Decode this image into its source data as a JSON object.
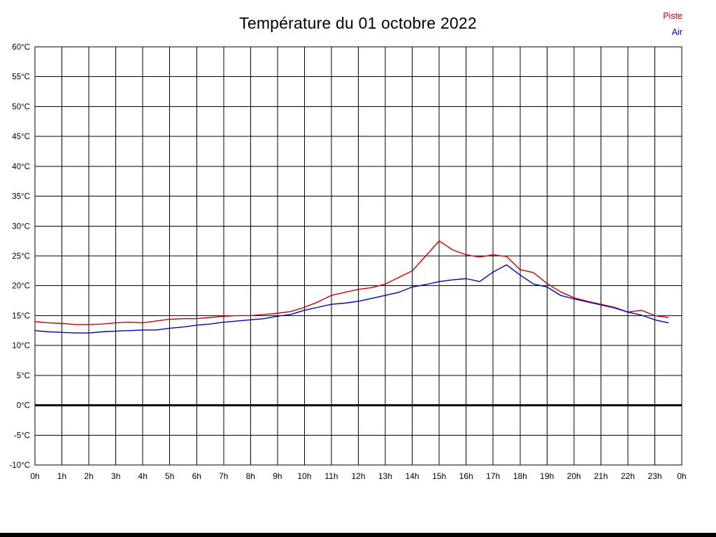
{
  "title": "Température du 01 octobre 2022",
  "legend": {
    "piste": "Piste",
    "air": "Air"
  },
  "colors": {
    "piste": "#cc0000",
    "air": "#0000bb",
    "grid": "#000000",
    "axis_text": "#000000",
    "zero_line": "#000000",
    "background": "#ffffff"
  },
  "chart_data": {
    "type": "line",
    "title": "Température du 01 octobre 2022",
    "xlabel": "",
    "ylabel": "",
    "xlim": [
      0,
      24
    ],
    "ylim": [
      -10,
      60
    ],
    "y_tick_step": 5,
    "x_tick_step_hours": 1,
    "grid": true,
    "zero_line": true,
    "legend_position": "top-right",
    "x_ticks": [
      "0h",
      "1h",
      "2h",
      "3h",
      "4h",
      "5h",
      "6h",
      "7h",
      "8h",
      "9h",
      "10h",
      "11h",
      "12h",
      "13h",
      "14h",
      "15h",
      "16h",
      "17h",
      "18h",
      "19h",
      "20h",
      "21h",
      "22h",
      "23h",
      "0h"
    ],
    "y_ticks": [
      "60°C",
      "55°C",
      "50°C",
      "45°C",
      "40°C",
      "35°C",
      "30°C",
      "25°C",
      "20°C",
      "15°C",
      "10°C",
      "5°C",
      "0°C",
      "-5°C",
      "-10°C"
    ],
    "x_step_hours": 0.5,
    "series": [
      {
        "name": "Piste",
        "color": "#cc0000",
        "values": [
          14.0,
          13.8,
          13.7,
          13.5,
          13.5,
          13.6,
          13.8,
          13.9,
          13.8,
          14.1,
          14.4,
          14.5,
          14.5,
          14.7,
          14.9,
          15.0,
          15.0,
          15.2,
          15.4,
          15.7,
          16.4,
          17.3,
          18.4,
          18.9,
          19.4,
          19.7,
          20.3,
          21.4,
          22.5,
          25.0,
          27.5,
          26.0,
          25.2,
          24.8,
          25.2,
          24.9,
          22.7,
          22.2,
          20.4,
          19.0,
          18.0,
          17.4,
          16.9,
          16.4,
          15.6,
          15.9,
          15.0,
          14.7
        ]
      },
      {
        "name": "Air",
        "color": "#0000bb",
        "values": [
          12.5,
          12.3,
          12.2,
          12.1,
          12.1,
          12.3,
          12.4,
          12.5,
          12.6,
          12.6,
          12.9,
          13.1,
          13.4,
          13.6,
          13.9,
          14.1,
          14.3,
          14.5,
          14.9,
          15.2,
          15.9,
          16.4,
          16.9,
          17.1,
          17.4,
          17.9,
          18.4,
          18.9,
          19.8,
          20.2,
          20.7,
          21.0,
          21.2,
          20.7,
          22.3,
          23.5,
          21.8,
          20.3,
          19.8,
          18.4,
          17.8,
          17.3,
          16.8,
          16.3,
          15.6,
          15.1,
          14.3,
          13.8
        ]
      }
    ]
  }
}
